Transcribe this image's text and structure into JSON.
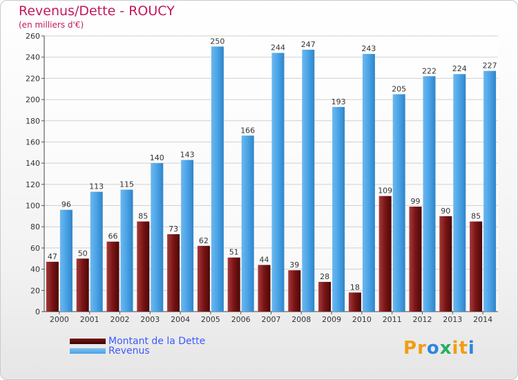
{
  "title": "Revenus/Dette - ROUCY",
  "subtitle": "(en milliers d'€)",
  "colors": {
    "dette": "#7a1414",
    "revenus": "#4aa3e6"
  },
  "logo": {
    "letters": [
      "P",
      "r",
      "o",
      "x",
      "i",
      "t",
      "i"
    ],
    "colors": [
      "#f39c12",
      "#f39c12",
      "#2e86de",
      "#27ae60",
      "#f39c12",
      "#f39c12",
      "#2e86de"
    ]
  },
  "chart_data": {
    "type": "bar",
    "categories": [
      "2000",
      "2001",
      "2002",
      "2003",
      "2004",
      "2005",
      "2006",
      "2007",
      "2008",
      "2009",
      "2010",
      "2011",
      "2012",
      "2013",
      "2014"
    ],
    "series": [
      {
        "name": "Montant de la Dette",
        "values": [
          47,
          50,
          66,
          85,
          73,
          62,
          51,
          44,
          39,
          28,
          18,
          109,
          99,
          90,
          85
        ]
      },
      {
        "name": "Revenus",
        "values": [
          96,
          113,
          115,
          140,
          143,
          250,
          166,
          244,
          247,
          193,
          243,
          205,
          222,
          224,
          227
        ]
      }
    ],
    "ylim": [
      0,
      260
    ],
    "yticks": [
      0,
      20,
      40,
      60,
      80,
      100,
      120,
      140,
      160,
      180,
      200,
      220,
      240,
      260
    ],
    "grid": true,
    "legend": "bottom-left"
  }
}
